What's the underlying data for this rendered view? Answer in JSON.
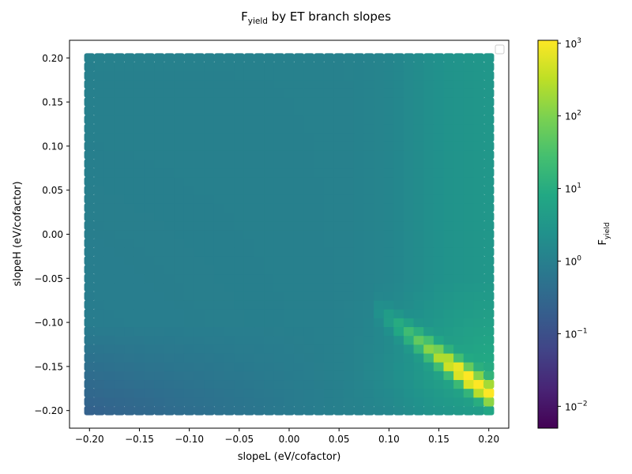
{
  "chart_data": {
    "type": "heatmap",
    "title": {
      "base": "F",
      "sub": "yield",
      "rest": " by ET branch slopes"
    },
    "xlabel": "slopeL (eV/cofactor)",
    "ylabel": "slopeH (eV/cofactor)",
    "xlim": [
      -0.22,
      0.22
    ],
    "ylim": [
      -0.22,
      0.22
    ],
    "xticks": [
      "-0.20",
      "-0.15",
      "-0.10",
      "-0.05",
      "0.00",
      "0.05",
      "0.10",
      "0.15",
      "0.20"
    ],
    "yticks": [
      "-0.20",
      "-0.15",
      "-0.10",
      "-0.05",
      "0.00",
      "0.05",
      "0.10",
      "0.15",
      "0.20"
    ],
    "x_range": [
      -0.2,
      0.2
    ],
    "y_range": [
      -0.2,
      0.2
    ],
    "grid_n": 41,
    "colormap": "viridis",
    "color_scale": "log",
    "clim": [
      0.005,
      1100
    ],
    "colorbar": {
      "label": {
        "base": "F",
        "sub": "yield"
      },
      "ticks": [
        {
          "base": "10",
          "exp": "3",
          "value": 1000
        },
        {
          "base": "10",
          "exp": "2",
          "value": 100
        },
        {
          "base": "10",
          "exp": "1",
          "value": 10
        },
        {
          "base": "10",
          "exp": "0",
          "value": 1
        },
        {
          "base": "10",
          "exp": "−1",
          "value": 0.1
        },
        {
          "base": "10",
          "exp": "−2",
          "value": 0.01
        }
      ]
    },
    "legend": "top-right (empty)",
    "grid": false
  }
}
